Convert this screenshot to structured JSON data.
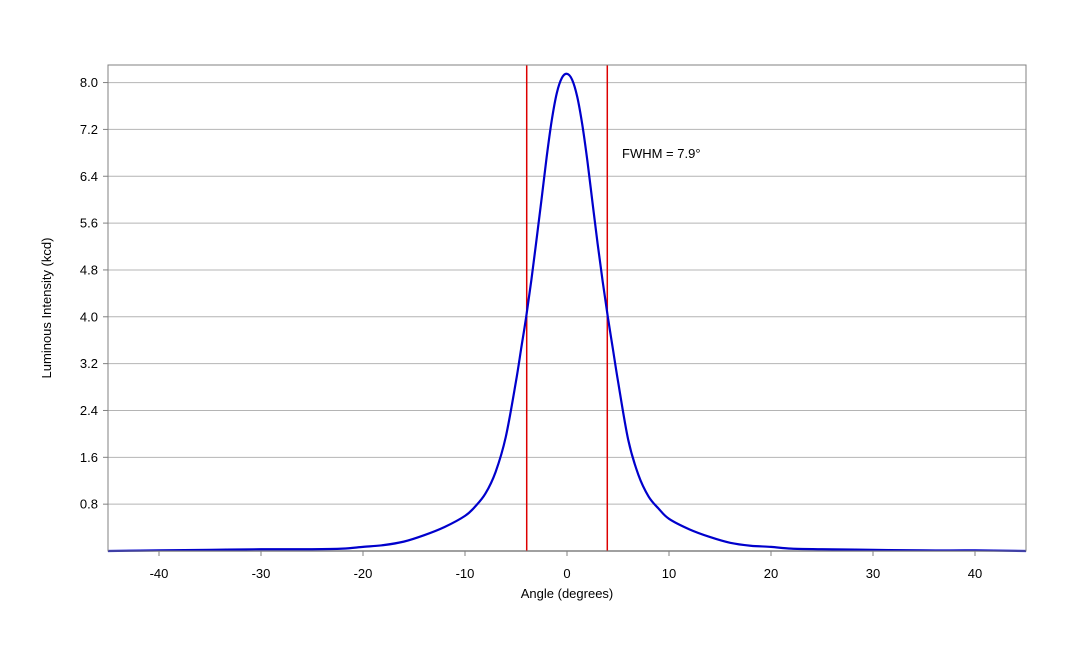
{
  "chart_data": {
    "type": "line",
    "title": "",
    "xlabel": "Angle (degrees)",
    "ylabel": "Luminous Intensity (kcd)",
    "xlim": [
      -45,
      45
    ],
    "ylim": [
      0,
      8.3
    ],
    "x_ticks": [
      "-40",
      "-30",
      "-20",
      "-10",
      "0",
      "10",
      "20",
      "30",
      "40"
    ],
    "y_ticks": [
      "0.8",
      "1.6",
      "2.4",
      "3.2",
      "4.0",
      "4.8",
      "5.6",
      "6.4",
      "7.2",
      "8.0"
    ],
    "grid": true,
    "annotation": "FWHM = 7.9°",
    "vlines": [
      -3.95,
      3.95
    ],
    "colors": {
      "series": "#0000cc",
      "vlines": "#dd0000",
      "grid": "#b4b4b4",
      "frame": "#808080"
    },
    "series": [
      {
        "x": [
          -45,
          -40,
          -35,
          -30,
          -25,
          -22,
          -20,
          -18,
          -16,
          -14,
          -12,
          -10,
          -9,
          -8,
          -7,
          -6,
          -5,
          -4.5,
          -4,
          -3.5,
          -3,
          -2.5,
          -2,
          -1.5,
          -1,
          -0.5,
          0,
          0.5,
          1,
          1.5,
          2,
          2.5,
          3,
          3.5,
          4,
          4.5,
          5,
          6,
          7,
          8,
          9,
          10,
          12,
          14,
          16,
          18,
          20,
          22,
          25,
          30,
          35,
          40,
          45
        ],
        "y": [
          0.0,
          0.01,
          0.02,
          0.03,
          0.03,
          0.04,
          0.07,
          0.1,
          0.16,
          0.27,
          0.41,
          0.6,
          0.76,
          0.98,
          1.35,
          1.95,
          2.9,
          3.45,
          4.0,
          4.62,
          5.3,
          6.0,
          6.72,
          7.35,
          7.82,
          8.08,
          8.15,
          8.05,
          7.76,
          7.28,
          6.66,
          5.95,
          5.25,
          4.6,
          4.0,
          3.45,
          2.9,
          1.9,
          1.3,
          0.93,
          0.72,
          0.55,
          0.37,
          0.24,
          0.14,
          0.09,
          0.07,
          0.04,
          0.03,
          0.02,
          0.01,
          0.01,
          0.0
        ]
      }
    ]
  }
}
